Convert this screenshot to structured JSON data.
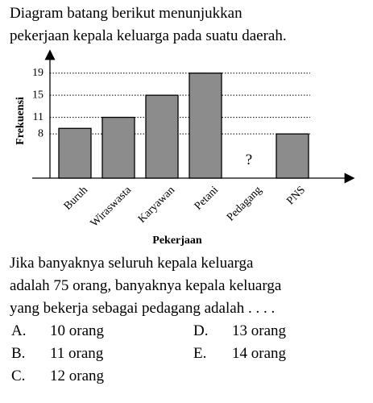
{
  "intro": [
    "Diagram batang berikut menunjukkan",
    "pekerjaan kepala keluarga pada suatu daerah."
  ],
  "chart_data": {
    "type": "bar",
    "ylabel": "Frekuensi",
    "xlabel": "Pekerjaan",
    "categories": [
      "Buruh",
      "Wiraswasta",
      "Karyawan",
      "Petani",
      "Pedagang",
      "PNS"
    ],
    "values": [
      9,
      11,
      15,
      19,
      null,
      8
    ],
    "value_labels": [
      null,
      null,
      null,
      null,
      "?",
      null
    ],
    "color": "#8c8c8c",
    "ylim": [
      0,
      21
    ],
    "yticks": [
      8,
      11,
      15,
      19
    ],
    "grid": true
  },
  "question": [
    "Jika banyaknya seluruh kepala keluarga",
    "adalah 75 orang, banyaknya kepala keluarga",
    "yang bekerja sebagai pedagang adalah . . . ."
  ],
  "options": [
    {
      "label": "A.",
      "text": "10 orang"
    },
    {
      "label": "B.",
      "text": "11 orang"
    },
    {
      "label": "C.",
      "text": "12 orang"
    },
    {
      "label": "D.",
      "text": "13 orang"
    },
    {
      "label": "E.",
      "text": "14 orang"
    }
  ]
}
